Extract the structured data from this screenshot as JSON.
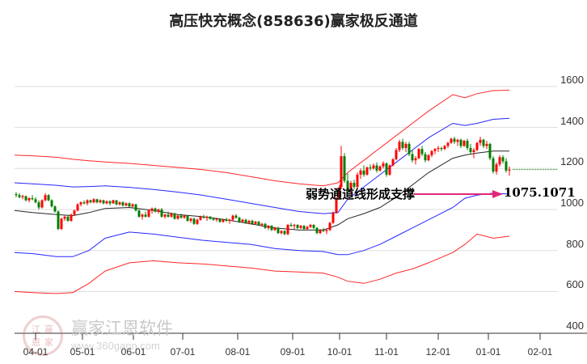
{
  "title": "高压快充概念(858636)赢家极反通道",
  "chart_data": {
    "type": "candlestick",
    "title": "高压快充概念(858636)赢家极反通道",
    "ylim": [
      400,
      1700
    ],
    "y_ticks": [
      1600,
      1400,
      1200,
      1000,
      800,
      600,
      400
    ],
    "x_ticks": [
      "04-01",
      "05-01",
      "06-01",
      "07-01",
      "08-01",
      "09-01",
      "10-01",
      "11-01",
      "12-01",
      "01-01",
      "02-01"
    ],
    "x_tick_positions": [
      44,
      102,
      165,
      226,
      294,
      362,
      420,
      478,
      542,
      604,
      668
    ],
    "grid": true,
    "annotation": {
      "text": "弱势通道线形成支撑",
      "value": "1075.1071",
      "arrow_color": "#e0287a"
    },
    "last_close_line": {
      "value": 1195,
      "color": "#008000",
      "style": "dotted"
    },
    "series": [
      {
        "name": "outer-upper",
        "color": "#ff0000",
        "x": [
          18,
          40,
          70,
          90,
          110,
          130,
          160,
          190,
          220,
          250,
          280,
          310,
          340,
          370,
          400,
          418,
          430,
          450,
          470,
          490,
          510,
          530,
          560,
          575,
          590,
          610,
          630
        ],
        "values": [
          1265,
          1262,
          1255,
          1245,
          1238,
          1232,
          1225,
          1215,
          1205,
          1195,
          1180,
          1160,
          1140,
          1125,
          1115,
          1130,
          1180,
          1240,
          1300,
          1360,
          1420,
          1480,
          1560,
          1545,
          1565,
          1580,
          1582
        ]
      },
      {
        "name": "inner-upper",
        "color": "#0000ff",
        "x": [
          18,
          40,
          70,
          90,
          110,
          130,
          160,
          190,
          220,
          250,
          280,
          310,
          340,
          370,
          400,
          418,
          430,
          450,
          470,
          490,
          510,
          530,
          560,
          575,
          590,
          610,
          630
        ],
        "values": [
          1130,
          1125,
          1118,
          1110,
          1112,
          1115,
          1108,
          1098,
          1085,
          1070,
          1050,
          1030,
          1010,
          990,
          980,
          985,
          1050,
          1110,
          1170,
          1230,
          1290,
          1350,
          1420,
          1410,
          1420,
          1440,
          1445
        ]
      },
      {
        "name": "middle",
        "color": "#000000",
        "x": [
          18,
          40,
          70,
          90,
          110,
          130,
          160,
          190,
          220,
          250,
          280,
          310,
          340,
          370,
          400,
          418,
          430,
          450,
          470,
          490,
          510,
          530,
          560,
          575,
          590,
          610,
          630
        ],
        "values": [
          995,
          985,
          975,
          970,
          985,
          1005,
          1010,
          995,
          975,
          965,
          950,
          930,
          910,
          900,
          900,
          925,
          955,
          980,
          1010,
          1060,
          1120,
          1180,
          1250,
          1265,
          1275,
          1285,
          1285
        ]
      },
      {
        "name": "inner-lower",
        "color": "#0000ff",
        "x": [
          18,
          40,
          70,
          90,
          110,
          130,
          160,
          190,
          220,
          250,
          280,
          310,
          340,
          370,
          400,
          418,
          430,
          450,
          470,
          490,
          510,
          530,
          560,
          575,
          590,
          610,
          630
        ],
        "values": [
          790,
          785,
          770,
          770,
          800,
          860,
          890,
          880,
          865,
          850,
          840,
          830,
          810,
          800,
          795,
          780,
          780,
          800,
          830,
          870,
          910,
          950,
          1010,
          1055,
          1070,
          1080,
          1075
        ]
      },
      {
        "name": "outer-lower",
        "color": "#ff0000",
        "x": [
          18,
          40,
          70,
          90,
          110,
          130,
          160,
          190,
          220,
          250,
          280,
          310,
          340,
          370,
          400,
          418,
          430,
          450,
          470,
          490,
          510,
          530,
          560,
          575,
          590,
          610,
          630
        ],
        "values": [
          600,
          595,
          590,
          595,
          640,
          700,
          740,
          750,
          740,
          735,
          725,
          715,
          700,
          695,
          690,
          670,
          650,
          640,
          660,
          690,
          710,
          740,
          790,
          830,
          880,
          860,
          870
        ]
      }
    ],
    "candles_note": "approximate daily OHLC read from pixel positions",
    "candles": [
      [
        20,
        1075,
        1085,
        1060,
        1070
      ],
      [
        24,
        1070,
        1080,
        1055,
        1060
      ],
      [
        28,
        1060,
        1072,
        1050,
        1065
      ],
      [
        32,
        1065,
        1068,
        1040,
        1045
      ],
      [
        36,
        1045,
        1060,
        1035,
        1055
      ],
      [
        40,
        1055,
        1070,
        1045,
        1050
      ],
      [
        44,
        1050,
        1060,
        1030,
        1035
      ],
      [
        48,
        1035,
        1045,
        1000,
        1010
      ],
      [
        52,
        1010,
        1050,
        1005,
        1045
      ],
      [
        56,
        1045,
        1080,
        1040,
        1070
      ],
      [
        60,
        1070,
        1075,
        1040,
        1045
      ],
      [
        64,
        1045,
        1050,
        1010,
        1015
      ],
      [
        68,
        1015,
        1020,
        985,
        990
      ],
      [
        72,
        990,
        995,
        900,
        905
      ],
      [
        76,
        905,
        960,
        900,
        955
      ],
      [
        80,
        955,
        970,
        945,
        965
      ],
      [
        84,
        965,
        975,
        940,
        945
      ],
      [
        88,
        945,
        980,
        940,
        975
      ],
      [
        92,
        975,
        1000,
        970,
        995
      ],
      [
        96,
        995,
        1030,
        990,
        1025
      ],
      [
        100,
        1025,
        1040,
        1015,
        1035
      ],
      [
        104,
        1035,
        1045,
        1025,
        1030
      ],
      [
        108,
        1030,
        1050,
        1020,
        1045
      ],
      [
        112,
        1045,
        1048,
        1030,
        1035
      ],
      [
        116,
        1035,
        1055,
        1030,
        1050
      ],
      [
        120,
        1050,
        1052,
        1030,
        1035
      ],
      [
        124,
        1035,
        1050,
        1030,
        1045
      ],
      [
        128,
        1045,
        1048,
        1025,
        1030
      ],
      [
        132,
        1030,
        1045,
        1025,
        1040
      ],
      [
        136,
        1040,
        1045,
        1020,
        1030
      ],
      [
        140,
        1030,
        1048,
        1028,
        1045
      ],
      [
        144,
        1045,
        1046,
        1020,
        1025
      ],
      [
        148,
        1025,
        1040,
        1020,
        1035
      ],
      [
        152,
        1035,
        1040,
        1015,
        1020
      ],
      [
        156,
        1020,
        1035,
        1015,
        1030
      ],
      [
        160,
        1030,
        1035,
        1010,
        1015
      ],
      [
        164,
        1015,
        1030,
        1010,
        1025
      ],
      [
        168,
        1025,
        1028,
        990,
        995
      ],
      [
        172,
        995,
        1000,
        960,
        965
      ],
      [
        176,
        965,
        980,
        950,
        975
      ],
      [
        180,
        975,
        990,
        960,
        965
      ],
      [
        184,
        965,
        1000,
        960,
        995
      ],
      [
        188,
        995,
        1010,
        980,
        1005
      ],
      [
        192,
        1005,
        1010,
        985,
        990
      ],
      [
        196,
        990,
        1005,
        980,
        1000
      ],
      [
        200,
        1000,
        1008,
        960,
        965
      ],
      [
        204,
        965,
        980,
        955,
        975
      ],
      [
        208,
        975,
        990,
        960,
        965
      ],
      [
        212,
        965,
        985,
        960,
        980
      ],
      [
        216,
        980,
        985,
        950,
        955
      ],
      [
        220,
        955,
        975,
        950,
        970
      ],
      [
        224,
        970,
        980,
        955,
        960
      ],
      [
        228,
        960,
        975,
        955,
        970
      ],
      [
        232,
        970,
        972,
        940,
        945
      ],
      [
        236,
        945,
        960,
        935,
        955
      ],
      [
        240,
        955,
        960,
        925,
        930
      ],
      [
        244,
        930,
        955,
        925,
        950
      ],
      [
        248,
        950,
        970,
        945,
        965
      ],
      [
        252,
        965,
        975,
        955,
        960
      ],
      [
        256,
        960,
        970,
        945,
        965
      ],
      [
        260,
        965,
        968,
        950,
        955
      ],
      [
        264,
        955,
        962,
        945,
        950
      ],
      [
        268,
        950,
        960,
        940,
        955
      ],
      [
        272,
        955,
        958,
        935,
        940
      ],
      [
        276,
        940,
        955,
        935,
        950
      ],
      [
        280,
        950,
        960,
        940,
        945
      ],
      [
        284,
        945,
        955,
        930,
        950
      ],
      [
        288,
        950,
        975,
        945,
        970
      ],
      [
        292,
        970,
        978,
        955,
        960
      ],
      [
        296,
        960,
        965,
        935,
        940
      ],
      [
        300,
        940,
        955,
        935,
        950
      ],
      [
        304,
        950,
        955,
        930,
        935
      ],
      [
        308,
        935,
        950,
        928,
        945
      ],
      [
        312,
        945,
        950,
        925,
        930
      ],
      [
        316,
        930,
        945,
        925,
        940
      ],
      [
        320,
        940,
        945,
        920,
        925
      ],
      [
        324,
        925,
        935,
        915,
        930
      ],
      [
        328,
        930,
        935,
        905,
        910
      ],
      [
        332,
        910,
        925,
        900,
        920
      ],
      [
        336,
        920,
        925,
        895,
        900
      ],
      [
        340,
        900,
        915,
        895,
        910
      ],
      [
        344,
        910,
        915,
        880,
        885
      ],
      [
        348,
        885,
        900,
        878,
        895
      ],
      [
        352,
        895,
        900,
        875,
        880
      ],
      [
        356,
        880,
        930,
        875,
        925
      ],
      [
        360,
        925,
        935,
        915,
        920
      ],
      [
        364,
        920,
        930,
        905,
        925
      ],
      [
        368,
        925,
        928,
        905,
        910
      ],
      [
        372,
        910,
        925,
        905,
        920
      ],
      [
        376,
        920,
        925,
        900,
        905
      ],
      [
        380,
        905,
        920,
        900,
        915
      ],
      [
        384,
        915,
        930,
        910,
        925
      ],
      [
        388,
        925,
        928,
        905,
        910
      ],
      [
        392,
        910,
        915,
        880,
        885
      ],
      [
        396,
        885,
        905,
        880,
        900
      ],
      [
        400,
        900,
        910,
        890,
        895
      ],
      [
        404,
        895,
        905,
        880,
        900
      ],
      [
        408,
        900,
        940,
        895,
        935
      ],
      [
        412,
        935,
        990,
        930,
        985
      ],
      [
        416,
        985,
        1060,
        980,
        1055
      ],
      [
        420,
        1055,
        1120,
        1050,
        1110
      ],
      [
        422,
        1110,
        1310,
        1100,
        1260
      ],
      [
        426,
        1260,
        1275,
        1130,
        1140
      ],
      [
        430,
        1140,
        1175,
        1090,
        1100
      ],
      [
        434,
        1100,
        1140,
        1080,
        1130
      ],
      [
        438,
        1130,
        1145,
        1100,
        1110
      ],
      [
        442,
        1110,
        1180,
        1105,
        1170
      ],
      [
        446,
        1170,
        1200,
        1150,
        1190
      ],
      [
        450,
        1190,
        1215,
        1160,
        1170
      ],
      [
        454,
        1170,
        1210,
        1165,
        1205
      ],
      [
        458,
        1205,
        1220,
        1190,
        1200
      ],
      [
        462,
        1200,
        1225,
        1195,
        1215
      ],
      [
        466,
        1215,
        1230,
        1180,
        1190
      ],
      [
        470,
        1190,
        1215,
        1185,
        1210
      ],
      [
        474,
        1210,
        1235,
        1200,
        1225
      ],
      [
        478,
        1225,
        1230,
        1160,
        1170
      ],
      [
        482,
        1170,
        1220,
        1165,
        1215
      ],
      [
        486,
        1215,
        1250,
        1210,
        1245
      ],
      [
        490,
        1245,
        1300,
        1240,
        1290
      ],
      [
        494,
        1290,
        1340,
        1280,
        1330
      ],
      [
        498,
        1330,
        1345,
        1290,
        1300
      ],
      [
        502,
        1300,
        1330,
        1280,
        1320
      ],
      [
        506,
        1320,
        1330,
        1260,
        1270
      ],
      [
        510,
        1270,
        1290,
        1230,
        1240
      ],
      [
        514,
        1240,
        1260,
        1220,
        1250
      ],
      [
        518,
        1250,
        1300,
        1245,
        1295
      ],
      [
        522,
        1295,
        1310,
        1260,
        1270
      ],
      [
        526,
        1270,
        1280,
        1230,
        1240
      ],
      [
        530,
        1240,
        1270,
        1235,
        1265
      ],
      [
        534,
        1265,
        1290,
        1255,
        1285
      ],
      [
        538,
        1285,
        1300,
        1270,
        1295
      ],
      [
        542,
        1295,
        1310,
        1280,
        1300
      ],
      [
        546,
        1300,
        1305,
        1285,
        1295
      ],
      [
        550,
        1295,
        1315,
        1290,
        1310
      ],
      [
        554,
        1310,
        1330,
        1300,
        1325
      ],
      [
        558,
        1325,
        1350,
        1320,
        1345
      ],
      [
        562,
        1345,
        1355,
        1320,
        1330
      ],
      [
        566,
        1330,
        1345,
        1310,
        1340
      ],
      [
        570,
        1340,
        1345,
        1300,
        1310
      ],
      [
        574,
        1310,
        1340,
        1305,
        1335
      ],
      [
        578,
        1335,
        1345,
        1290,
        1300
      ],
      [
        582,
        1300,
        1320,
        1270,
        1280
      ],
      [
        586,
        1280,
        1300,
        1250,
        1290
      ],
      [
        590,
        1290,
        1330,
        1285,
        1325
      ],
      [
        594,
        1325,
        1355,
        1310,
        1340
      ],
      [
        598,
        1340,
        1345,
        1300,
        1310
      ],
      [
        602,
        1310,
        1335,
        1295,
        1320
      ],
      [
        606,
        1320,
        1325,
        1240,
        1250
      ],
      [
        610,
        1250,
        1260,
        1175,
        1185
      ],
      [
        614,
        1185,
        1230,
        1170,
        1220
      ],
      [
        618,
        1220,
        1265,
        1210,
        1255
      ],
      [
        622,
        1255,
        1265,
        1225,
        1235
      ],
      [
        626,
        1235,
        1250,
        1180,
        1190
      ],
      [
        630,
        1190,
        1210,
        1165,
        1195
      ]
    ]
  },
  "y_axis": {
    "labels": [
      "1600",
      "1400",
      "1200",
      "1000",
      "800",
      "600",
      "400"
    ]
  },
  "x_axis": {
    "labels": [
      "04-01",
      "05-01",
      "06-01",
      "07-01",
      "08-01",
      "09-01",
      "10-01",
      "11-01",
      "12-01",
      "01-01",
      "02-01"
    ]
  },
  "annotation": {
    "text": "弱势通道线形成支撑",
    "value": "1075.1071"
  },
  "watermark": {
    "name": "赢家江恩软件",
    "url": "www.360gann.com",
    "logo_chars": [
      "江",
      "赢",
      "恩",
      "家"
    ]
  }
}
